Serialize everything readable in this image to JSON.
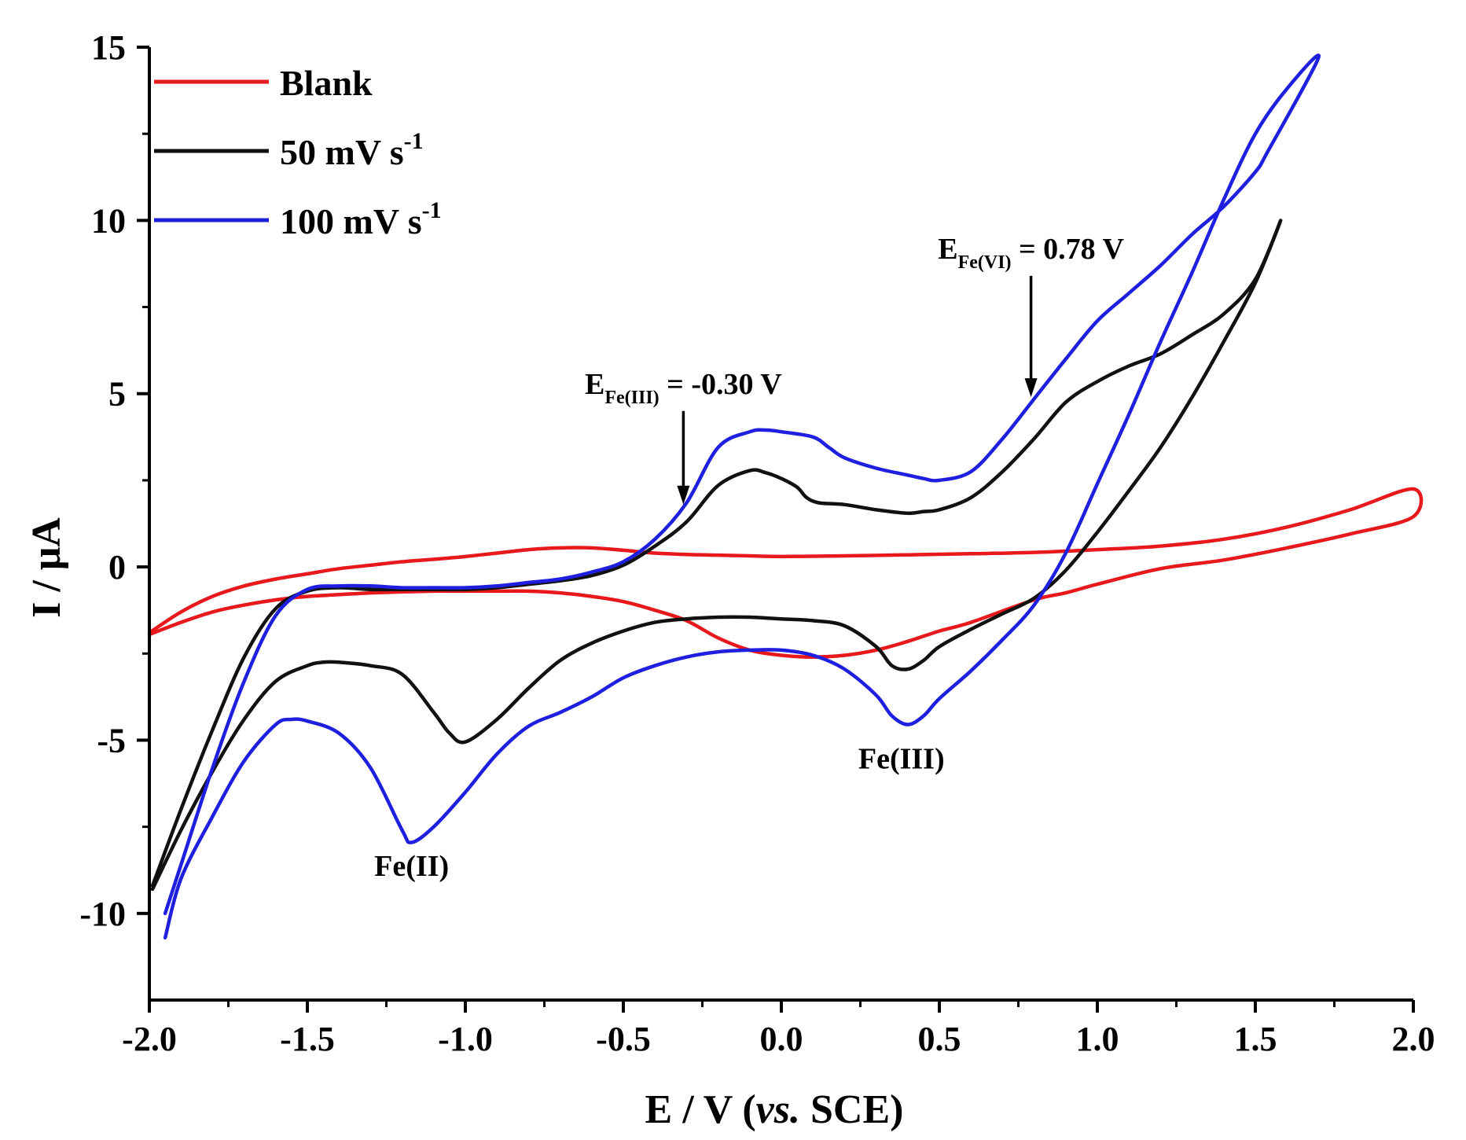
{
  "chart_data": {
    "type": "line",
    "title": "",
    "xlabel": {
      "prefix": "E / V (",
      "italic": "vs.",
      "suffix": " SCE)"
    },
    "ylabel": "I / μA",
    "xlim": [
      -2.0,
      2.0
    ],
    "ylim": [
      -12.5,
      15
    ],
    "x_ticks": [
      -2.0,
      -1.5,
      -1.0,
      -0.5,
      0.0,
      0.5,
      1.0,
      1.5,
      2.0
    ],
    "x_tick_labels": [
      "-2.0",
      "-1.5",
      "-1.0",
      "-0.5",
      "0.0",
      "0.5",
      "1.0",
      "1.5",
      "2.0"
    ],
    "y_ticks": [
      -10,
      -5,
      0,
      5,
      10,
      15
    ],
    "y_tick_labels": [
      "-10",
      "-5",
      "0",
      "5",
      "10",
      "15"
    ],
    "grid": false,
    "legend_position": "top-left",
    "legend": [
      {
        "label": "Blank",
        "sup": ""
      },
      {
        "label": "50 mV s",
        "sup": "-1"
      },
      {
        "label": "100 mV s",
        "sup": "-1"
      }
    ],
    "series": [
      {
        "name": "Blank",
        "color": "#e8191c",
        "x": [
          -2.0,
          -1.9,
          -1.8,
          -1.7,
          -1.6,
          -1.5,
          -1.4,
          -1.3,
          -1.2,
          -1.1,
          -1.0,
          -0.9,
          -0.8,
          -0.7,
          -0.6,
          -0.5,
          -0.4,
          -0.3,
          -0.2,
          -0.1,
          0.0,
          0.2,
          0.4,
          0.6,
          0.8,
          1.0,
          1.2,
          1.4,
          1.6,
          1.8,
          2.0,
          2.0,
          1.8,
          1.6,
          1.4,
          1.2,
          1.0,
          0.9,
          0.8,
          0.6,
          0.5,
          0.4,
          0.3,
          0.2,
          0.1,
          0.0,
          -0.1,
          -0.2,
          -0.3,
          -0.4,
          -0.5,
          -0.6,
          -0.7,
          -0.8,
          -0.9,
          -1.0,
          -1.1,
          -1.2,
          -1.3,
          -1.4,
          -1.5,
          -1.6,
          -1.7,
          -1.8,
          -1.9,
          -2.0
        ],
        "y": [
          -1.9,
          -1.3,
          -0.85,
          -0.55,
          -0.35,
          -0.2,
          -0.05,
          0.05,
          0.15,
          0.22,
          0.3,
          0.4,
          0.5,
          0.55,
          0.55,
          0.48,
          0.4,
          0.36,
          0.34,
          0.32,
          0.3,
          0.32,
          0.35,
          0.38,
          0.42,
          0.5,
          0.6,
          0.8,
          1.15,
          1.65,
          2.25,
          1.45,
          0.95,
          0.55,
          0.2,
          -0.05,
          -0.5,
          -0.75,
          -0.95,
          -1.6,
          -1.85,
          -2.15,
          -2.4,
          -2.55,
          -2.6,
          -2.55,
          -2.4,
          -2.05,
          -1.55,
          -1.25,
          -1.0,
          -0.85,
          -0.75,
          -0.7,
          -0.7,
          -0.7,
          -0.7,
          -0.72,
          -0.75,
          -0.8,
          -0.85,
          -0.95,
          -1.1,
          -1.3,
          -1.6,
          -1.95
        ]
      },
      {
        "name": "50 mV s-1",
        "color": "#111111",
        "x": [
          -1.99,
          -1.9,
          -1.8,
          -1.7,
          -1.6,
          -1.5,
          -1.45,
          -1.4,
          -1.3,
          -1.2,
          -1.1,
          -1.05,
          -1.0,
          -0.9,
          -0.8,
          -0.7,
          -0.6,
          -0.5,
          -0.4,
          -0.3,
          -0.2,
          -0.1,
          0.0,
          0.1,
          0.2,
          0.3,
          0.35,
          0.4,
          0.45,
          0.5,
          0.6,
          0.7,
          0.8,
          0.9,
          1.0,
          1.1,
          1.2,
          1.3,
          1.4,
          1.5,
          1.58,
          1.5,
          1.4,
          1.3,
          1.2,
          1.1,
          1.0,
          0.9,
          0.8,
          0.7,
          0.6,
          0.5,
          0.45,
          0.4,
          0.3,
          0.2,
          0.12,
          0.08,
          0.05,
          0.0,
          -0.05,
          -0.1,
          -0.2,
          -0.3,
          -0.4,
          -0.5,
          -0.6,
          -0.7,
          -0.8,
          -0.9,
          -1.0,
          -1.1,
          -1.2,
          -1.3,
          -1.4,
          -1.5,
          -1.6,
          -1.7,
          -1.8,
          -1.9,
          -1.99
        ],
        "y": [
          -9.3,
          -7.6,
          -5.9,
          -4.4,
          -3.3,
          -2.85,
          -2.75,
          -2.75,
          -2.85,
          -3.1,
          -4.2,
          -4.8,
          -5.05,
          -4.4,
          -3.5,
          -2.7,
          -2.2,
          -1.85,
          -1.6,
          -1.5,
          -1.45,
          -1.45,
          -1.5,
          -1.55,
          -1.7,
          -2.3,
          -2.85,
          -2.95,
          -2.7,
          -2.3,
          -1.8,
          -1.35,
          -0.9,
          -0.1,
          1.0,
          2.2,
          3.45,
          4.9,
          6.5,
          8.2,
          10.0,
          8.3,
          7.3,
          6.7,
          6.15,
          5.8,
          5.35,
          4.75,
          3.7,
          2.75,
          2.0,
          1.65,
          1.6,
          1.55,
          1.65,
          1.8,
          1.85,
          2.0,
          2.3,
          2.55,
          2.72,
          2.78,
          2.35,
          1.3,
          0.6,
          0.05,
          -0.25,
          -0.4,
          -0.5,
          -0.6,
          -0.65,
          -0.65,
          -0.65,
          -0.65,
          -0.6,
          -0.7,
          -1.2,
          -2.6,
          -4.7,
          -7.0,
          -9.2
        ]
      },
      {
        "name": "100 mV s-1",
        "color": "#1f1fe0",
        "x": [
          -1.95,
          -1.9,
          -1.8,
          -1.7,
          -1.6,
          -1.55,
          -1.5,
          -1.4,
          -1.3,
          -1.2,
          -1.17,
          -1.1,
          -1.0,
          -0.9,
          -0.8,
          -0.7,
          -0.6,
          -0.5,
          -0.4,
          -0.3,
          -0.2,
          -0.1,
          0.0,
          0.1,
          0.2,
          0.3,
          0.35,
          0.4,
          0.45,
          0.5,
          0.6,
          0.7,
          0.8,
          0.9,
          1.0,
          1.1,
          1.2,
          1.3,
          1.4,
          1.5,
          1.6,
          1.7,
          1.54,
          1.5,
          1.4,
          1.3,
          1.2,
          1.1,
          1.0,
          0.9,
          0.8,
          0.7,
          0.6,
          0.5,
          0.45,
          0.4,
          0.3,
          0.2,
          0.15,
          0.1,
          0.0,
          -0.05,
          -0.1,
          -0.2,
          -0.3,
          -0.4,
          -0.5,
          -0.6,
          -0.7,
          -0.8,
          -0.9,
          -1.0,
          -1.1,
          -1.2,
          -1.3,
          -1.4,
          -1.5,
          -1.6,
          -1.7,
          -1.8,
          -1.9,
          -1.95
        ],
        "y": [
          -10.7,
          -9.0,
          -7.2,
          -5.6,
          -4.55,
          -4.4,
          -4.45,
          -4.8,
          -5.8,
          -7.6,
          -7.95,
          -7.5,
          -6.5,
          -5.4,
          -4.6,
          -4.2,
          -3.75,
          -3.2,
          -2.85,
          -2.6,
          -2.45,
          -2.4,
          -2.4,
          -2.55,
          -2.95,
          -3.7,
          -4.3,
          -4.55,
          -4.3,
          -3.8,
          -3.0,
          -2.1,
          -1.1,
          0.4,
          2.4,
          4.4,
          6.5,
          8.5,
          10.6,
          12.5,
          13.8,
          14.7,
          12.0,
          11.4,
          10.4,
          9.6,
          8.7,
          7.9,
          7.1,
          6.0,
          4.85,
          3.7,
          2.75,
          2.5,
          2.55,
          2.65,
          2.85,
          3.15,
          3.45,
          3.75,
          3.9,
          3.95,
          3.9,
          3.45,
          1.85,
          0.8,
          0.15,
          -0.15,
          -0.35,
          -0.45,
          -0.55,
          -0.6,
          -0.6,
          -0.6,
          -0.55,
          -0.55,
          -0.65,
          -1.4,
          -3.3,
          -5.8,
          -8.6,
          -10.0
        ]
      }
    ],
    "annotations": [
      {
        "main": "E",
        "sub": "Fe(III)",
        "rest": " = -0.30 V",
        "arrow_x": -0.31,
        "arrow_y_from": 4.5,
        "arrow_y_to": 1.8
      },
      {
        "main": "E",
        "sub": "Fe(VI)",
        "rest": " = 0.78 V",
        "arrow_x": 0.79,
        "arrow_y_from": 8.4,
        "arrow_y_to": 4.9
      },
      {
        "text": "Fe(III)",
        "x": 0.38,
        "y": -5.5
      },
      {
        "text": "Fe(II)",
        "x": -1.17,
        "y": -8.6
      }
    ]
  }
}
